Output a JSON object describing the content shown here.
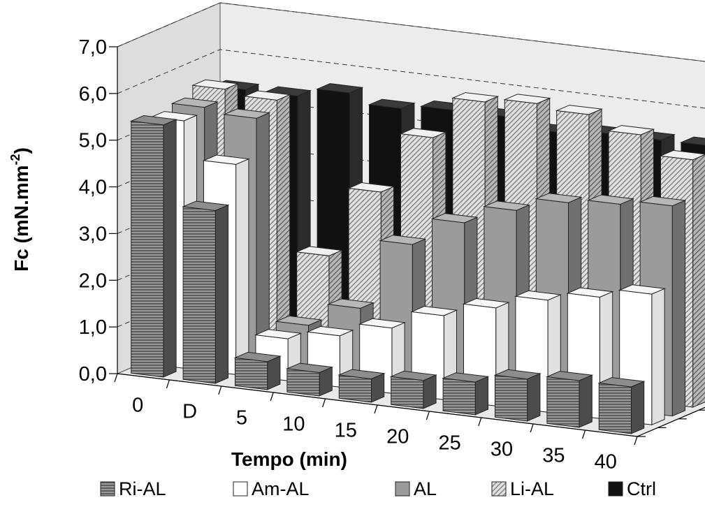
{
  "chart_data": {
    "type": "bar",
    "subtype": "3d-clustered-bar",
    "title": "",
    "xlabel": "Tempo (min)",
    "ylabel_main": "Fc (mN.mm",
    "ylabel_sup": "-2",
    "ylabel_end": ")",
    "ylim": [
      0,
      7
    ],
    "yticks": [
      "0,0",
      "1,0",
      "2,0",
      "3,0",
      "4,0",
      "5,0",
      "6,0",
      "7,0"
    ],
    "categories": [
      "0",
      "D",
      "5",
      "10",
      "15",
      "20",
      "25",
      "30",
      "35",
      "40"
    ],
    "grid": "dashed-back-wall",
    "legend_position": "bottom",
    "series": [
      {
        "name": "Ri-AL",
        "color": "#6e6e6e",
        "pattern": "horizontal-stripes",
        "values": [
          5.4,
          3.7,
          0.6,
          0.5,
          0.5,
          0.6,
          0.7,
          0.9,
          1.0,
          1.0
        ]
      },
      {
        "name": "Am-AL",
        "color": "#ffffff",
        "pattern": "none",
        "values": [
          5.3,
          4.5,
          0.9,
          1.1,
          1.4,
          1.8,
          2.1,
          2.4,
          2.6,
          2.8
        ]
      },
      {
        "name": "AL",
        "color": "#9b9b9b",
        "pattern": "none",
        "values": [
          5.4,
          5.3,
          1.0,
          1.5,
          3.0,
          3.6,
          4.0,
          4.3,
          4.4,
          4.5
        ]
      },
      {
        "name": "Li-AL",
        "color": "#d9d9d9",
        "pattern": "diagonal-hatch",
        "values": [
          5.6,
          5.5,
          2.3,
          3.8,
          5.1,
          6.0,
          6.1,
          6.0,
          5.7,
          5.3
        ]
      },
      {
        "name": "Ctrl",
        "color": "#111111",
        "pattern": "none",
        "values": [
          5.4,
          5.4,
          5.6,
          5.4,
          5.5,
          5.5,
          5.3,
          5.4,
          5.4,
          5.4
        ]
      }
    ]
  }
}
